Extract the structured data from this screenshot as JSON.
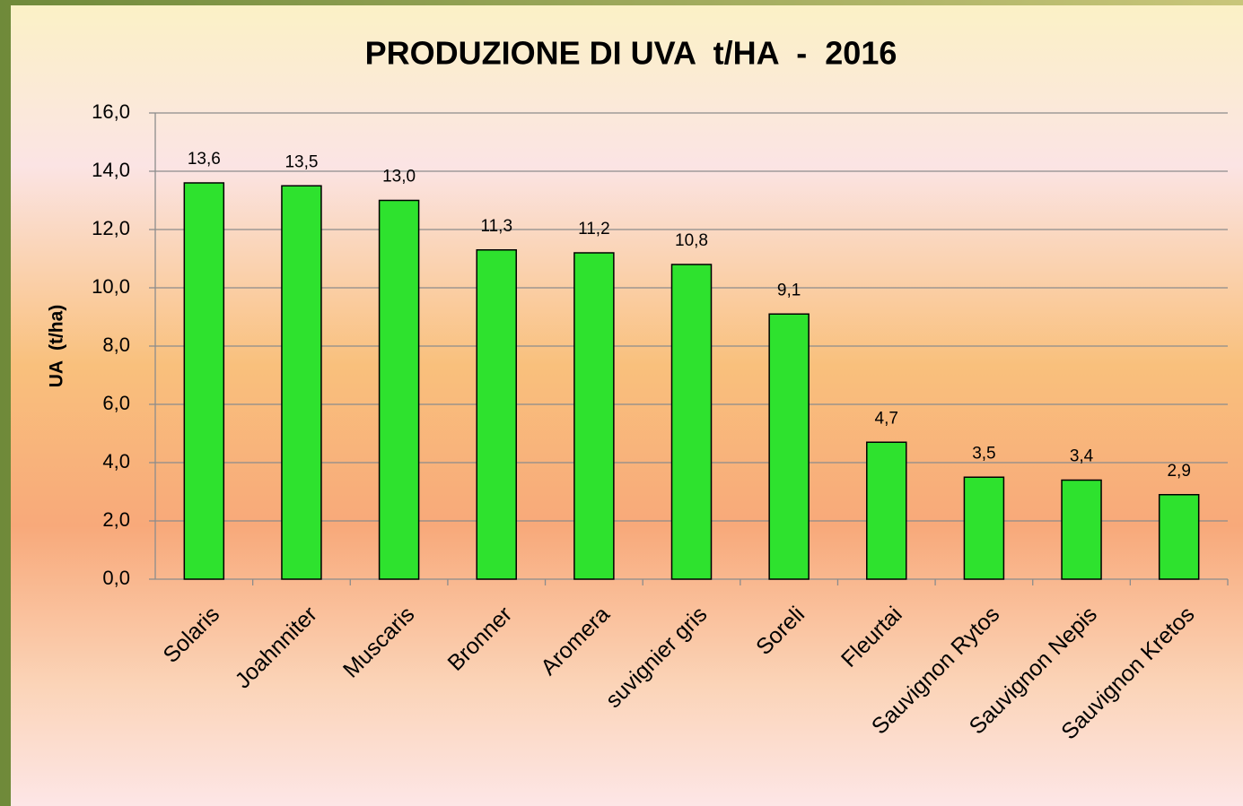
{
  "chart_data": {
    "type": "bar",
    "title": "PRODUZIONE DI UVA  t/HA  -  2016",
    "y_label": "UA  (t/ha)",
    "categories": [
      "Solaris",
      "Joahnniter",
      "Muscaris",
      "Bronner",
      "Aromera",
      "suvignier gris",
      "Soreli",
      "Fleurtai",
      "Sauvignon Rytos",
      "Sauvignon Nepis",
      "Sauvignon Kretos"
    ],
    "values": [
      13.6,
      13.5,
      13.0,
      11.3,
      11.2,
      10.8,
      9.1,
      4.7,
      3.5,
      3.4,
      2.9
    ],
    "value_labels": [
      "13,6",
      "13,5",
      "13,0",
      "11,3",
      "11,2",
      "10,8",
      "9,1",
      "4,7",
      "3,5",
      "3,4",
      "2,9"
    ],
    "color": "#2ee22e",
    "ylim": [
      0,
      16
    ],
    "yticks": [
      {
        "value": 0,
        "label": "0,0"
      },
      {
        "value": 2,
        "label": "2,0"
      },
      {
        "value": 4,
        "label": "4,0"
      },
      {
        "value": 6,
        "label": "6,0"
      },
      {
        "value": 8,
        "label": "8,0"
      },
      {
        "value": 10,
        "label": "10,0"
      },
      {
        "value": 12,
        "label": "12,0"
      },
      {
        "value": 14,
        "label": "14,0"
      },
      {
        "value": 16,
        "label": "16,0"
      }
    ],
    "grid": true
  }
}
